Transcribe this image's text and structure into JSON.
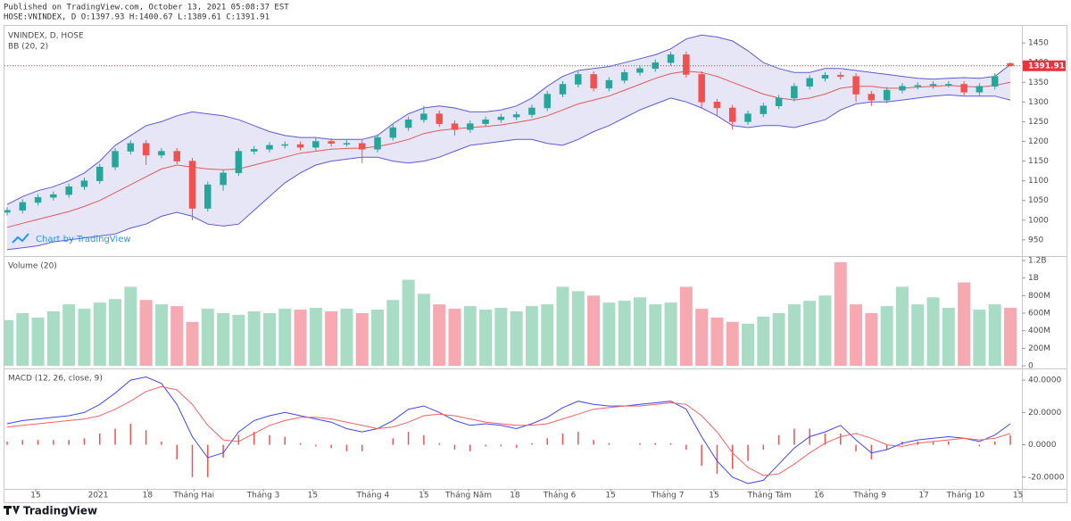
{
  "header": {
    "published": "Published on TradingView.com, October 13, 2021 05:08:37 EST",
    "symbol_line": "HOSE:VNINDEX, D O:1397.93 H:1400.67 L:1389.61 C:1391.91",
    "footer": "TradingView"
  },
  "chart_data": [
    {
      "type": "candlestick",
      "title": "VNINDEX, D, HOSE",
      "indicator": "BB (20, 2)",
      "watermark": "Chart by TradingView",
      "up_color": "#26a69a",
      "down_color": "#ef5350",
      "open": [
        1020,
        1025,
        1045,
        1058,
        1065,
        1085,
        1100,
        1135,
        1175,
        1195,
        1165,
        1175,
        1150,
        1030,
        1090,
        1120,
        1175,
        1180,
        1190,
        1192,
        1185,
        1200,
        1195,
        1195,
        1180,
        1210,
        1235,
        1255,
        1270,
        1245,
        1230,
        1245,
        1255,
        1262,
        1268,
        1285,
        1320,
        1345,
        1370,
        1335,
        1355,
        1375,
        1385,
        1400,
        1420,
        1370,
        1300,
        1285,
        1250,
        1270,
        1290,
        1310,
        1340,
        1360,
        1368,
        1365,
        1320,
        1305,
        1330,
        1340,
        1342,
        1345,
        1345,
        1325,
        1340,
        1397.93
      ],
      "high": [
        1033,
        1053,
        1066,
        1073,
        1093,
        1108,
        1143,
        1183,
        1203,
        1203,
        1183,
        1183,
        1158,
        1098,
        1128,
        1183,
        1188,
        1198,
        1200,
        1200,
        1208,
        1208,
        1203,
        1203,
        1218,
        1243,
        1263,
        1290,
        1278,
        1253,
        1253,
        1263,
        1270,
        1276,
        1293,
        1328,
        1353,
        1378,
        1378,
        1363,
        1383,
        1393,
        1408,
        1428,
        1428,
        1378,
        1308,
        1293,
        1278,
        1298,
        1318,
        1348,
        1368,
        1376,
        1376,
        1373,
        1328,
        1338,
        1348,
        1350,
        1353,
        1353,
        1353,
        1348,
        1373,
        1400.67
      ],
      "low": [
        1012,
        1017,
        1037,
        1050,
        1057,
        1077,
        1092,
        1127,
        1167,
        1140,
        1157,
        1142,
        1000,
        1022,
        1075,
        1112,
        1167,
        1172,
        1182,
        1177,
        1177,
        1187,
        1187,
        1145,
        1172,
        1202,
        1227,
        1247,
        1237,
        1215,
        1222,
        1237,
        1247,
        1254,
        1260,
        1277,
        1312,
        1337,
        1327,
        1327,
        1347,
        1367,
        1377,
        1392,
        1362,
        1285,
        1265,
        1230,
        1242,
        1262,
        1282,
        1302,
        1332,
        1352,
        1357,
        1300,
        1290,
        1297,
        1322,
        1332,
        1334,
        1337,
        1317,
        1317,
        1332,
        1389.61
      ],
      "close": [
        1025,
        1045,
        1058,
        1065,
        1085,
        1100,
        1135,
        1175,
        1195,
        1165,
        1175,
        1150,
        1030,
        1090,
        1120,
        1175,
        1180,
        1190,
        1192,
        1185,
        1200,
        1195,
        1195,
        1180,
        1210,
        1235,
        1255,
        1270,
        1245,
        1230,
        1245,
        1255,
        1262,
        1268,
        1285,
        1320,
        1345,
        1370,
        1335,
        1355,
        1375,
        1385,
        1400,
        1420,
        1370,
        1300,
        1285,
        1250,
        1270,
        1290,
        1310,
        1340,
        1360,
        1368,
        1365,
        1320,
        1305,
        1330,
        1340,
        1342,
        1345,
        1345,
        1325,
        1340,
        1365,
        1391.91
      ],
      "bollinger": {
        "line_color": "#5b5bd6",
        "middle_color": "#e05a5a",
        "fill_color": "#dcdcf3",
        "upper": [
          1040,
          1060,
          1075,
          1085,
          1100,
          1120,
          1150,
          1190,
          1215,
          1240,
          1250,
          1265,
          1275,
          1270,
          1265,
          1255,
          1240,
          1225,
          1215,
          1210,
          1210,
          1205,
          1205,
          1205,
          1215,
          1245,
          1270,
          1285,
          1290,
          1285,
          1275,
          1275,
          1280,
          1290,
          1310,
          1340,
          1365,
          1380,
          1385,
          1390,
          1400,
          1410,
          1420,
          1435,
          1460,
          1470,
          1465,
          1455,
          1430,
          1400,
          1385,
          1375,
          1375,
          1385,
          1385,
          1380,
          1375,
          1370,
          1365,
          1360,
          1358,
          1360,
          1362,
          1360,
          1365,
          1395
        ],
        "middle": [
          982,
          992,
          1002,
          1012,
          1022,
          1035,
          1050,
          1070,
          1090,
          1110,
          1130,
          1140,
          1135,
          1130,
          1128,
          1130,
          1140,
          1150,
          1160,
          1170,
          1175,
          1180,
          1182,
          1183,
          1187,
          1195,
          1205,
          1220,
          1228,
          1232,
          1235,
          1238,
          1242,
          1248,
          1255,
          1265,
          1280,
          1295,
          1305,
          1315,
          1330,
          1345,
          1360,
          1372,
          1378,
          1375,
          1365,
          1350,
          1335,
          1320,
          1310,
          1305,
          1310,
          1320,
          1335,
          1340,
          1340,
          1335,
          1335,
          1338,
          1340,
          1342,
          1340,
          1338,
          1342,
          1350
        ],
        "lower": [
          925,
          930,
          935,
          945,
          950,
          955,
          960,
          965,
          980,
          990,
          1010,
          1020,
          1010,
          990,
          985,
          990,
          1025,
          1060,
          1095,
          1120,
          1140,
          1150,
          1155,
          1160,
          1160,
          1150,
          1145,
          1150,
          1160,
          1175,
          1190,
          1195,
          1200,
          1205,
          1205,
          1195,
          1190,
          1205,
          1225,
          1240,
          1260,
          1280,
          1295,
          1310,
          1300,
          1285,
          1265,
          1240,
          1235,
          1240,
          1240,
          1235,
          1245,
          1255,
          1280,
          1295,
          1300,
          1300,
          1305,
          1310,
          1315,
          1318,
          1315,
          1315,
          1315,
          1305
        ]
      },
      "last_price_color": "#e8323c",
      "ylim": [
        909,
        1491
      ],
      "yticks": [
        950,
        1000,
        1050,
        1100,
        1150,
        1200,
        1250,
        1300,
        1350,
        1400,
        1450
      ]
    },
    {
      "type": "bar",
      "title": "Volume (20)",
      "up_color": "#a8dcc4",
      "down_color": "#f7a9b1",
      "values": [
        520000000.0,
        600000000.0,
        550000000.0,
        620000000.0,
        700000000.0,
        650000000.0,
        720000000.0,
        760000000.0,
        900000000.0,
        750000000.0,
        700000000.0,
        680000000.0,
        500000000.0,
        650000000.0,
        600000000.0,
        580000000.0,
        620000000.0,
        600000000.0,
        650000000.0,
        640000000.0,
        660000000.0,
        620000000.0,
        650000000.0,
        600000000.0,
        640000000.0,
        750000000.0,
        980000000.0,
        820000000.0,
        700000000.0,
        650000000.0,
        680000000.0,
        640000000.0,
        660000000.0,
        620000000.0,
        680000000.0,
        700000000.0,
        900000000.0,
        850000000.0,
        800000000.0,
        720000000.0,
        740000000.0,
        780000000.0,
        700000000.0,
        720000000.0,
        900000000.0,
        650000000.0,
        550000000.0,
        500000000.0,
        480000000.0,
        560000000.0,
        600000000.0,
        700000000.0,
        740000000.0,
        800000000.0,
        1180000000.0,
        700000000.0,
        600000000.0,
        680000000.0,
        900000000.0,
        700000000.0,
        780000000.0,
        660000000.0,
        950000000.0,
        640000000.0,
        700000000.0,
        660000000.0
      ],
      "ylim": [
        -30000000.0,
        1240000000.0
      ],
      "yticks": [
        {
          "value": 0,
          "label": "0"
        },
        {
          "value": 200000000.0,
          "label": "200M"
        },
        {
          "value": 400000000.0,
          "label": "400M"
        },
        {
          "value": 600000000.0,
          "label": "600M"
        },
        {
          "value": 800000000.0,
          "label": "800M"
        },
        {
          "value": 1000000000.0,
          "label": "1B"
        },
        {
          "value": 1200000000.0,
          "label": "1.2B"
        }
      ]
    },
    {
      "type": "macd",
      "title": "MACD (12, 26, close, 9)",
      "macd_color": "#3f46f0",
      "signal_color": "#f26363",
      "histogram_color": "#ef5350",
      "macd": [
        13,
        15,
        16,
        17,
        18,
        20,
        25,
        32,
        40,
        42,
        38,
        25,
        5,
        -8,
        -5,
        8,
        15,
        18,
        20,
        18,
        16,
        14,
        10,
        8,
        10,
        15,
        22,
        24,
        20,
        15,
        12,
        13,
        12,
        10,
        13,
        17,
        23,
        27,
        25,
        24,
        24,
        25,
        26,
        27,
        22,
        5,
        -10,
        -20,
        -24,
        -22,
        -12,
        -2,
        5,
        8,
        12,
        3,
        -5,
        -3,
        1,
        3,
        4,
        5,
        4,
        2,
        6,
        13
      ],
      "signal": [
        11,
        12,
        13,
        14,
        15,
        16,
        18,
        22,
        27,
        33,
        36,
        34,
        25,
        12,
        3,
        2,
        7,
        12,
        15,
        17,
        17,
        16,
        14,
        12,
        10,
        11,
        14,
        18,
        19,
        18,
        16,
        14,
        13,
        12,
        12,
        13,
        16,
        19,
        22,
        23,
        24,
        24,
        25,
        26,
        25,
        18,
        8,
        -5,
        -14,
        -19,
        -18,
        -12,
        -5,
        1,
        5,
        7,
        4,
        0,
        -1,
        1,
        2,
        3,
        4,
        3,
        4,
        7
      ],
      "histogram": [
        2,
        3,
        3,
        3,
        3,
        4,
        7,
        10,
        13,
        9,
        2,
        -9,
        -20,
        -20,
        -8,
        6,
        8,
        6,
        5,
        1,
        -1,
        -2,
        -4,
        -4,
        0,
        4,
        8,
        6,
        1,
        -3,
        -4,
        -1,
        -1,
        -2,
        1,
        4,
        7,
        8,
        3,
        1,
        0,
        1,
        1,
        1,
        -3,
        -13,
        -18,
        -15,
        -10,
        -3,
        6,
        10,
        10,
        7,
        7,
        -4,
        -9,
        -3,
        2,
        2,
        2,
        2,
        0,
        -1,
        2,
        6
      ],
      "ylim": [
        -27.3,
        46.7
      ],
      "yticks": [
        {
          "value": 40,
          "label": "40.0000"
        },
        {
          "value": 20,
          "label": "20.0000"
        },
        {
          "value": 0,
          "label": "0.0000"
        },
        {
          "value": -20,
          "label": "-20.0000"
        }
      ],
      "xticks": [
        {
          "value": 1.85,
          "label": "15"
        },
        {
          "value": 5.9,
          "label": "2021"
        },
        {
          "value": 9.1,
          "label": "18"
        },
        {
          "value": 12.1,
          "label": "Tháng Hai"
        },
        {
          "value": 16.6,
          "label": "Tháng 3"
        },
        {
          "value": 19.8,
          "label": "15"
        },
        {
          "value": 23.7,
          "label": "Tháng 4"
        },
        {
          "value": 27,
          "label": "15"
        },
        {
          "value": 29.9,
          "label": "Tháng Năm"
        },
        {
          "value": 32.9,
          "label": "18"
        },
        {
          "value": 35.8,
          "label": "Tháng 6"
        },
        {
          "value": 39.1,
          "label": "15"
        },
        {
          "value": 42.8,
          "label": "Tháng 7"
        },
        {
          "value": 45.8,
          "label": "15"
        },
        {
          "value": 49.4,
          "label": "Tháng Tám"
        },
        {
          "value": 52.6,
          "label": "16"
        },
        {
          "value": 55.9,
          "label": "Tháng 9"
        },
        {
          "value": 59.4,
          "label": "17"
        },
        {
          "value": 62.1,
          "label": "Tháng 10"
        },
        {
          "value": 65.5,
          "label": "15"
        }
      ]
    }
  ]
}
